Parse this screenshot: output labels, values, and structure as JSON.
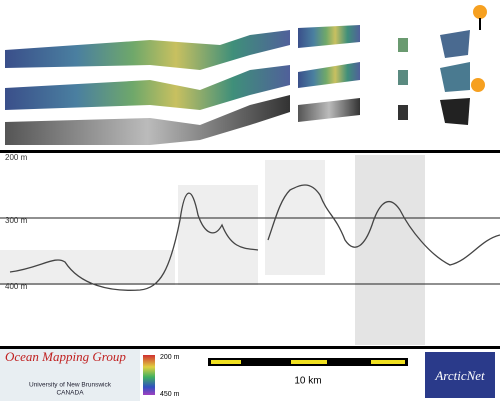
{
  "profile": {
    "depth_labels": [
      "200 m",
      "300 m",
      "400 m"
    ]
  },
  "footer": {
    "logo_title": "Ocean Mapping Group",
    "logo_line1": "University of New Brunswick",
    "logo_line2": "CANADA",
    "colorbar_top": "200 m",
    "colorbar_bottom": "450 m",
    "scale_label": "10 km",
    "partner": "ArcticNet"
  }
}
